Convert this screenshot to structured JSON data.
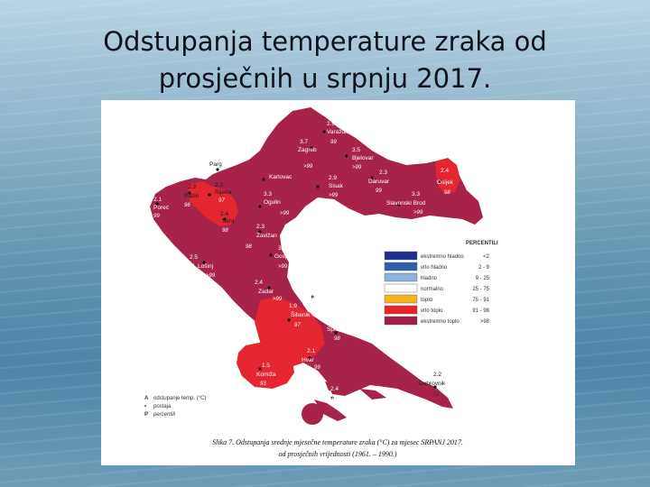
{
  "title": {
    "line1": "Odstupanja temperature zraka od",
    "line2": "prosječnih u srpnju 2017."
  },
  "legend": {
    "heading": "PERCENTILI",
    "items": [
      {
        "label": "ekstremno hladno",
        "range": "<2",
        "color": "#1f2f8f"
      },
      {
        "label": "vrlo hladno",
        "range": "2 - 9",
        "color": "#2e5fae"
      },
      {
        "label": "hladno",
        "range": "9 - 25",
        "color": "#8db3dd"
      },
      {
        "label": "normalno",
        "range": "25 - 75",
        "color": "#ffffff"
      },
      {
        "label": "toplo",
        "range": "75 - 91",
        "color": "#f5b21a"
      },
      {
        "label": "vrlo toplo",
        "range": "91 - 98",
        "color": "#e8242a"
      },
      {
        "label": "ekstremno toplo",
        "range": ">98",
        "color": "#a11d45"
      }
    ]
  },
  "key": {
    "a_sym": "A",
    "a_text": "odstupanje temp. (°C)",
    "b_sym": "•",
    "b_text": "postaja",
    "p_sym": "P",
    "p_text": "percentili"
  },
  "caption": {
    "line1": "Slika 7. Odstupanja srednje mjesečne temperature zraka (°C) za mjesec SRPANJ 2017.",
    "line2": "od prosječnih vrijednosti (1961. – 1990.)"
  },
  "stations": [
    {
      "name": "Varaždin",
      "temp": "2.9",
      "pct": "99"
    },
    {
      "name": "Zagreb",
      "temp": "3.7",
      "pct": "99"
    },
    {
      "name": "Bjelovar",
      "temp": "3.5",
      "pct": ">99"
    },
    {
      "name": "Parg",
      "temp": "",
      "pct": ""
    },
    {
      "name": "Karlovac",
      "temp": "",
      "pct": ">99"
    },
    {
      "name": "Sisak",
      "temp": "2.9",
      "pct": ">99"
    },
    {
      "name": "Daruvar",
      "temp": "2.3",
      "pct": "99"
    },
    {
      "name": "Osijek",
      "temp": "2.4",
      "pct": "98"
    },
    {
      "name": "Pazin",
      "temp": "2.3",
      "pct": "96"
    },
    {
      "name": "Rijeka",
      "temp": "2.3",
      "pct": "97"
    },
    {
      "name": "Poreč",
      "temp": "2.1",
      "pct": "99"
    },
    {
      "name": "Ogulin",
      "temp": "3.3",
      "pct": ">99"
    },
    {
      "name": "Slavonski Brod",
      "temp": "3.3",
      "pct": ">99"
    },
    {
      "name": "Senj",
      "temp": "2.4",
      "pct": "98"
    },
    {
      "name": "Zavižan",
      "temp": "2.3",
      "pct": "98"
    },
    {
      "name": "Gospić",
      "temp": "3.3",
      "pct": ">99"
    },
    {
      "name": "M. Lošinj",
      "temp": "2.5",
      "pct": ">99"
    },
    {
      "name": "Zadar",
      "temp": "2.4",
      "pct": ">99"
    },
    {
      "name": "Knin",
      "temp": "2.7",
      "pct": "99"
    },
    {
      "name": "Šibenik",
      "temp": "1.9",
      "pct": "97"
    },
    {
      "name": "Split",
      "temp": "2.1",
      "pct": "98"
    },
    {
      "name": "Hvar",
      "temp": "2.1",
      "pct": "99"
    },
    {
      "name": "Komiža",
      "temp": "1.5",
      "pct": "93"
    },
    {
      "name": "Lastovo",
      "temp": "2.4",
      "pct": ">99"
    },
    {
      "name": "Dubrovnik",
      "temp": "2.2",
      "pct": "99"
    }
  ]
}
